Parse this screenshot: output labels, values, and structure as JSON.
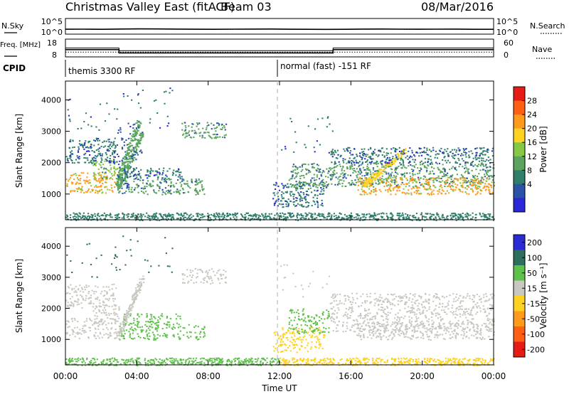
{
  "header": {
    "station": "Christmas Valley East (fitACF)",
    "beam": "Beam 03",
    "date": "08/Mar/2016"
  },
  "chart_data": [
    {
      "type": "line",
      "panel": "noise",
      "left_label": "N.Sky",
      "right_label": "N.Search",
      "left_ticks": [
        "10^5",
        "10^0"
      ],
      "right_ticks": [
        "10^5",
        "10^0"
      ],
      "scale": "log",
      "ylim": [
        1,
        100000
      ],
      "series": [
        {
          "style": "solid",
          "values": [
            30,
            32,
            28,
            35,
            40,
            38,
            33,
            30,
            29,
            31,
            34,
            36,
            30,
            28,
            27,
            29,
            33,
            35,
            31,
            30,
            32,
            34,
            29,
            28
          ]
        },
        {
          "style": "dotted",
          "values": [
            28,
            30,
            26,
            32,
            36,
            34,
            31,
            28,
            27,
            29,
            31,
            33,
            28,
            26,
            25,
            27,
            31,
            33,
            29,
            28,
            30,
            31,
            27,
            26
          ]
        }
      ]
    },
    {
      "type": "line",
      "panel": "frequency",
      "left_label": "Freq. [MHz]",
      "right_label": "Nave",
      "left_ticks": [
        "18",
        "8"
      ],
      "right_ticks": [
        "60",
        "0"
      ],
      "series": [
        {
          "name": "freq",
          "unit": "MHz",
          "segments": [
            [
              0,
              3,
              12.0
            ],
            [
              3,
              15,
              10.0
            ],
            [
              15,
              24,
              12.0
            ]
          ]
        },
        {
          "name": "nave",
          "segments": [
            [
              0,
              24,
              15
            ]
          ]
        },
        {
          "name": "nave-upper",
          "segments": [
            [
              0,
              3,
              30
            ],
            [
              3,
              15,
              20
            ],
            [
              15,
              24,
              30
            ]
          ]
        }
      ]
    },
    {
      "type": "table",
      "panel": "cpid",
      "label": "CPID",
      "entries": [
        {
          "start_hour": 0,
          "text": "themis 3300 RF"
        },
        {
          "start_hour": 12,
          "text": "normal (fast) -151 RF"
        }
      ]
    },
    {
      "type": "heatmap",
      "panel": "power",
      "ylabel": "Slant Range [km]",
      "yticks": [
        1000,
        2000,
        3000,
        4000
      ],
      "ylim": [
        180,
        4600
      ],
      "xlim": [
        0,
        24
      ],
      "colorbar": {
        "label": "Power [dB]",
        "ticks": [
          "28",
          "24",
          "20",
          "16",
          "12",
          "8",
          "4"
        ],
        "colors": [
          "#2a27d6",
          "#2a52a6",
          "#2f7e6c",
          "#5aa45e",
          "#86c842",
          "#ffd21f",
          "#ff9a1b",
          "#ff5f14",
          "#e61c14"
        ]
      },
      "features": [
        {
          "kind": "band",
          "x": [
            0,
            2.8
          ],
          "range": [
            1050,
            1700
          ],
          "value": 22
        },
        {
          "kind": "band",
          "x": [
            1.5,
            3.0
          ],
          "range": [
            1500,
            2100
          ],
          "value": 14
        },
        {
          "kind": "band",
          "x": [
            3.0,
            7.8
          ],
          "range": [
            1000,
            1500
          ],
          "value": 10
        },
        {
          "kind": "band",
          "x": [
            3.2,
            6.5
          ],
          "range": [
            1500,
            1850
          ],
          "value": 9
        },
        {
          "kind": "streak",
          "x": [
            2.9,
            4.3
          ],
          "range": [
            1100,
            3000
          ],
          "value": 11
        },
        {
          "kind": "streak",
          "x": [
            2.8,
            4.1
          ],
          "range": [
            1300,
            3300
          ],
          "value": 13
        },
        {
          "kind": "band",
          "x": [
            6.5,
            9.0
          ],
          "range": [
            2800,
            3300
          ],
          "value": 12
        },
        {
          "kind": "band",
          "x": [
            0,
            2.8
          ],
          "range": [
            2000,
            2800
          ],
          "value": 8
        },
        {
          "kind": "scatter",
          "x": [
            0,
            6
          ],
          "range": [
            3000,
            4400
          ],
          "value": 8
        },
        {
          "kind": "band",
          "x": [
            11.6,
            14.5
          ],
          "range": [
            600,
            1400
          ],
          "value": 9
        },
        {
          "kind": "band",
          "x": [
            12.5,
            14.8
          ],
          "range": [
            1200,
            2000
          ],
          "value": 10
        },
        {
          "kind": "band",
          "x": [
            14.8,
            24
          ],
          "range": [
            1250,
            2000
          ],
          "value": 11
        },
        {
          "kind": "band",
          "x": [
            16.3,
            24
          ],
          "range": [
            1000,
            1550
          ],
          "value": 24
        },
        {
          "kind": "streak",
          "x": [
            16.7,
            19.0
          ],
          "range": [
            1300,
            2400
          ],
          "value": 18
        },
        {
          "kind": "band",
          "x": [
            14.8,
            24
          ],
          "range": [
            2000,
            2500
          ],
          "value": 9
        },
        {
          "kind": "scatter",
          "x": [
            12,
            15
          ],
          "range": [
            2300,
            3500
          ],
          "value": 8
        },
        {
          "kind": "floor",
          "x": [
            0,
            24
          ],
          "range": [
            180,
            420
          ],
          "value": 6
        }
      ]
    },
    {
      "type": "heatmap",
      "panel": "velocity",
      "ylabel": "Slant Range [km]",
      "yticks": [
        1000,
        2000,
        3000,
        4000
      ],
      "ylim": [
        180,
        4600
      ],
      "xlim": [
        0,
        24
      ],
      "colorbar": {
        "label": "Velocity [m s⁻¹]",
        "ticks": [
          "200",
          "100",
          "50",
          "15",
          "-15",
          "-50",
          "-100",
          "-200"
        ],
        "colors": [
          "#2a2ad6",
          "#2e6e5e",
          "#5ec24a",
          "#c8c8c0",
          "#ffd21f",
          "#ff9a1b",
          "#ff5f14",
          "#e61c14"
        ]
      },
      "features": [
        {
          "kind": "band",
          "x": [
            0,
            2.8
          ],
          "range": [
            1050,
            1700
          ],
          "value": 0
        },
        {
          "kind": "band",
          "x": [
            1.5,
            3.0
          ],
          "range": [
            1500,
            2100
          ],
          "value": 0
        },
        {
          "kind": "band",
          "x": [
            3.0,
            7.8
          ],
          "range": [
            1000,
            1500
          ],
          "value": 40
        },
        {
          "kind": "band",
          "x": [
            3.2,
            6.5
          ],
          "range": [
            1500,
            1850
          ],
          "value": 20
        },
        {
          "kind": "streak",
          "x": [
            2.9,
            4.3
          ],
          "range": [
            1100,
            3000
          ],
          "value": 0
        },
        {
          "kind": "band",
          "x": [
            6.5,
            9.0
          ],
          "range": [
            2800,
            3300
          ],
          "value": 0
        },
        {
          "kind": "band",
          "x": [
            0,
            2.8
          ],
          "range": [
            2000,
            2800
          ],
          "value": 0
        },
        {
          "kind": "scatter",
          "x": [
            0,
            6
          ],
          "range": [
            3000,
            4400
          ],
          "value": 120
        },
        {
          "kind": "band",
          "x": [
            11.6,
            14.5
          ],
          "range": [
            600,
            1400
          ],
          "value": -40
        },
        {
          "kind": "band",
          "x": [
            12.5,
            14.8
          ],
          "range": [
            1200,
            2000
          ],
          "value": 30
        },
        {
          "kind": "band",
          "x": [
            14.8,
            24
          ],
          "range": [
            1250,
            2000
          ],
          "value": 0
        },
        {
          "kind": "band",
          "x": [
            16.3,
            24
          ],
          "range": [
            1000,
            1550
          ],
          "value": 0
        },
        {
          "kind": "band",
          "x": [
            14.8,
            24
          ],
          "range": [
            2000,
            2500
          ],
          "value": 0
        },
        {
          "kind": "scatter",
          "x": [
            12,
            15
          ],
          "range": [
            2300,
            3500
          ],
          "value": 0
        },
        {
          "kind": "floor",
          "x": [
            0,
            12
          ],
          "range": [
            180,
            420
          ],
          "value": 30
        },
        {
          "kind": "floor",
          "x": [
            12,
            24
          ],
          "range": [
            180,
            420
          ],
          "value": -40
        }
      ]
    }
  ],
  "xaxis": {
    "label": "Time UT",
    "ticks": [
      "00:00",
      "04:00",
      "08:00",
      "12:00",
      "16:00",
      "20:00",
      "00:00"
    ],
    "xlim": [
      0,
      24
    ]
  }
}
